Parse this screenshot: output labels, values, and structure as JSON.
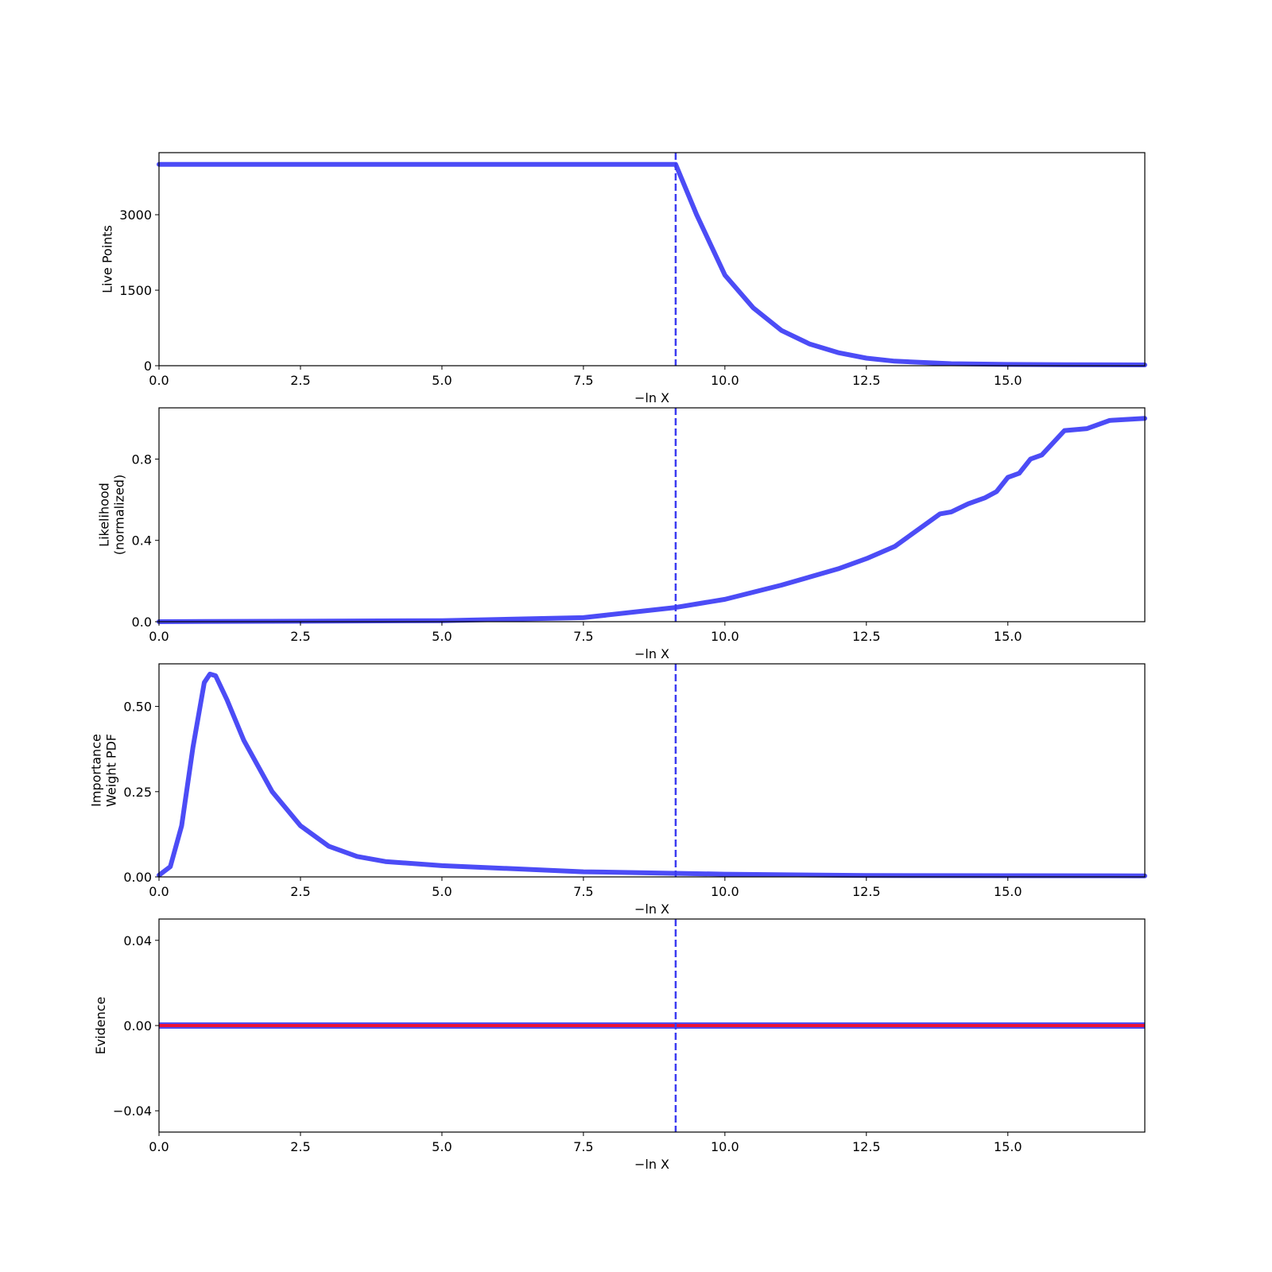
{
  "chart_data": [
    {
      "type": "line",
      "ylabel": [
        "Live Points"
      ],
      "xlabel": "−ln X",
      "color": "#4c4cf6",
      "x": [
        0,
        9.13,
        9.5,
        10,
        10.5,
        11,
        11.5,
        12,
        12.5,
        13,
        14,
        15,
        16,
        17.42
      ],
      "values": [
        4000,
        4000,
        3000,
        1800,
        1150,
        700,
        430,
        260,
        150,
        90,
        40,
        25,
        20,
        15
      ],
      "xlim": [
        0,
        17.42
      ],
      "ylim": [
        0,
        4233
      ],
      "xticks": [
        {
          "value": 0,
          "label": "0.0"
        },
        2.5,
        {
          "value": 5,
          "label": "5.0"
        },
        7.5,
        {
          "value": 10,
          "label": "10.0"
        },
        12.5,
        {
          "value": 15,
          "label": "15.0"
        }
      ],
      "yticks": [
        0,
        1500,
        3000
      ],
      "vline": {
        "x": 9.13,
        "color": "#3b3bf0"
      }
    },
    {
      "type": "line",
      "ylabel": [
        "Likelihood",
        "(normalized)"
      ],
      "xlabel": "−ln X",
      "color": "#4c4cf6",
      "x": [
        0,
        5,
        7.5,
        9.13,
        10,
        11,
        12,
        12.5,
        13,
        13.2,
        13.5,
        13.8,
        14,
        14.3,
        14.6,
        14.8,
        15,
        15.2,
        15.4,
        15.6,
        16,
        16.4,
        16.8,
        17.42
      ],
      "values": [
        0,
        0.005,
        0.02,
        0.07,
        0.11,
        0.18,
        0.26,
        0.31,
        0.37,
        0.41,
        0.47,
        0.53,
        0.54,
        0.58,
        0.61,
        0.64,
        0.71,
        0.73,
        0.8,
        0.82,
        0.94,
        0.95,
        0.99,
        1.0
      ],
      "xlim": [
        0,
        17.42
      ],
      "ylim": [
        0,
        1.052
      ],
      "xticks": [
        {
          "value": 0,
          "label": "0.0"
        },
        2.5,
        {
          "value": 5,
          "label": "5.0"
        },
        7.5,
        {
          "value": 10,
          "label": "10.0"
        },
        12.5,
        {
          "value": 15,
          "label": "15.0"
        }
      ],
      "yticks": [
        {
          "value": 0,
          "label": "0.0"
        },
        0.4,
        0.8
      ],
      "vline": {
        "x": 9.13,
        "color": "#3b3bf0"
      }
    },
    {
      "type": "line",
      "ylabel": [
        "Importance",
        "Weight PDF"
      ],
      "xlabel": "−ln X",
      "color": "#4c4cf6",
      "x": [
        0,
        0.2,
        0.4,
        0.6,
        0.8,
        0.9,
        1.0,
        1.2,
        1.5,
        2,
        2.5,
        3,
        3.5,
        4,
        5,
        7.5,
        10,
        12.5,
        17.42
      ],
      "values": [
        0.005,
        0.03,
        0.15,
        0.38,
        0.57,
        0.595,
        0.59,
        0.52,
        0.4,
        0.25,
        0.15,
        0.09,
        0.06,
        0.045,
        0.033,
        0.015,
        0.008,
        0.004,
        0.003
      ],
      "xlim": [
        0,
        17.42
      ],
      "ylim": [
        0,
        0.625
      ],
      "xticks": [
        {
          "value": 0,
          "label": "0.0"
        },
        2.5,
        {
          "value": 5,
          "label": "5.0"
        },
        7.5,
        {
          "value": 10,
          "label": "10.0"
        },
        12.5,
        {
          "value": 15,
          "label": "15.0"
        }
      ],
      "yticks": [
        {
          "value": 0,
          "label": "0.00"
        },
        0.25,
        {
          "value": 0.5,
          "label": "0.50"
        }
      ],
      "vline": {
        "x": 9.13,
        "color": "#3b3bf0"
      }
    },
    {
      "type": "line",
      "ylabel": [
        "Evidence"
      ],
      "xlabel": "−ln X",
      "color": "#e8103a",
      "edge_color": "#4c4cf6",
      "x": [
        0,
        17.42
      ],
      "values": [
        0,
        0
      ],
      "xlim": [
        0,
        17.42
      ],
      "ylim": [
        -0.05,
        0.05
      ],
      "xticks": [
        {
          "value": 0,
          "label": "0.0"
        },
        2.5,
        {
          "value": 5,
          "label": "5.0"
        },
        7.5,
        {
          "value": 10,
          "label": "10.0"
        },
        12.5,
        {
          "value": 15,
          "label": "15.0"
        }
      ],
      "yticks": [
        {
          "value": -0.04,
          "label": "−0.04"
        },
        {
          "value": 0,
          "label": "0.00"
        },
        0.04
      ],
      "vline": {
        "x": 9.13,
        "color": "#3b3bf0"
      }
    }
  ]
}
